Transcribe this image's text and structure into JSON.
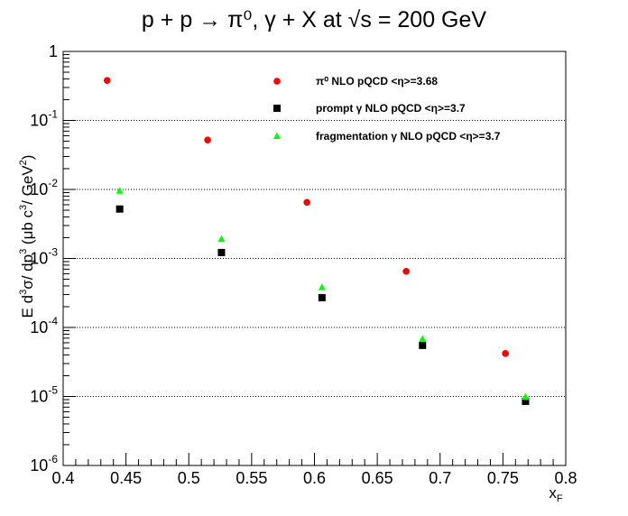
{
  "chart_data": {
    "type": "scatter",
    "title": "p + p → π⁰, γ + X at  √s = 200 GeV",
    "xlabel": "x_F",
    "ylabel": "E d³σ/ dp³ (μb c³/ GeV²)",
    "xlim": [
      0.4,
      0.8
    ],
    "ylim": [
      1e-06,
      1
    ],
    "yscale": "log",
    "grid": "horizontal dotted at decades",
    "legend_position": "top-right",
    "x_ticks": [
      "0.4",
      "0.45",
      "0.5",
      "0.55",
      "0.6",
      "0.65",
      "0.7",
      "0.75",
      "0.8"
    ],
    "y_ticks": [
      "10⁻⁶",
      "10⁻⁵",
      "10⁻⁴",
      "10⁻³",
      "10⁻²",
      "10⁻¹",
      "1"
    ],
    "series": [
      {
        "name": "π⁰   NLO pQCD  <η>=3.68",
        "marker": "circle",
        "color": "#ff0000",
        "x": [
          0.435,
          0.515,
          0.594,
          0.673,
          0.752
        ],
        "y": [
          0.38,
          0.052,
          0.0065,
          0.00065,
          4.2e-05
        ]
      },
      {
        "name": "prompt γ   NLO pQCD  <η>=3.7",
        "marker": "square",
        "color": "#000000",
        "x": [
          0.445,
          0.526,
          0.606,
          0.686,
          0.768
        ],
        "y": [
          0.0052,
          0.00122,
          0.00027,
          5.5e-05,
          8.5e-06
        ]
      },
      {
        "name": "fragmentation γ   NLO pQCD  <η>=3.7",
        "marker": "triangle",
        "color": "#00ff00",
        "x": [
          0.445,
          0.526,
          0.606,
          0.686,
          0.768
        ],
        "y": [
          0.0095,
          0.0019,
          0.00038,
          6.8e-05,
          9.8e-06
        ]
      }
    ]
  }
}
